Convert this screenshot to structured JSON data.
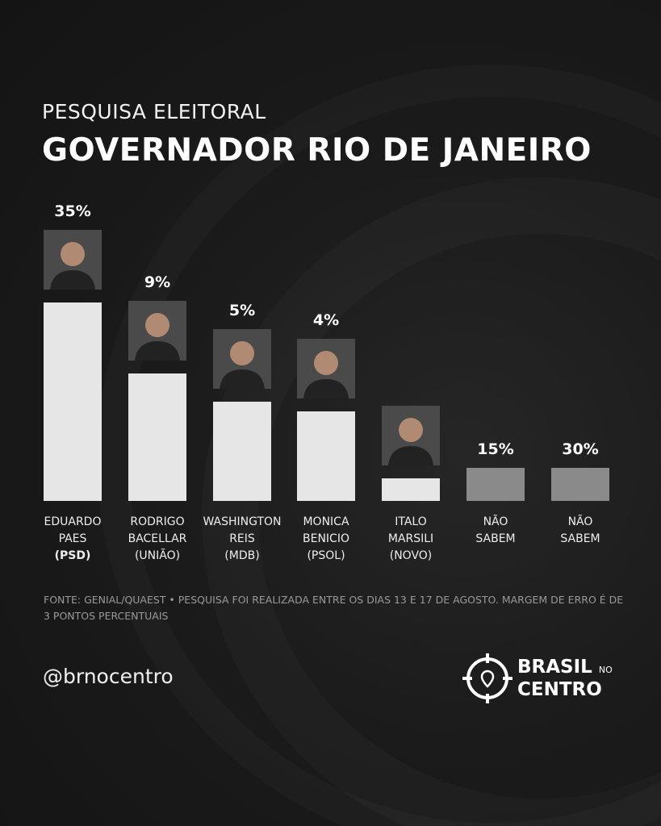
{
  "header": {
    "kicker": "PESQUISA ELEITORAL",
    "title": "GOVERNADOR RIO DE JANEIRO"
  },
  "chart_data": {
    "type": "bar",
    "title": "GOVERNADOR RIO DE JANEIRO",
    "categories": [
      "EDUARDO PAES (PSD)",
      "RODRIGO BACELLAR (UNIÃO)",
      "WASHINGTON REIS (MDB)",
      "MONICA BENICIO (PSOL)",
      "ITALO MARSILI (NOVO)",
      "NÃO SABEM",
      "NÃO SABEM"
    ],
    "items": [
      {
        "line1": "EDUARDO",
        "line2": "PAES",
        "party": "(PSD)",
        "value": 35,
        "label": "35%",
        "photo": true,
        "color": "#e6e6e6"
      },
      {
        "line1": "RODRIGO",
        "line2": "BACELLAR",
        "party": "(UNIÃO)",
        "value": 9,
        "label": "9%",
        "photo": true,
        "color": "#e6e6e6"
      },
      {
        "line1": "WASHINGTON",
        "line2": "REIS",
        "party": "(MDB)",
        "value": 5,
        "label": "5%",
        "photo": true,
        "color": "#e6e6e6"
      },
      {
        "line1": "MONICA",
        "line2": "BENICIO",
        "party": "(PSOL)",
        "value": 4,
        "label": "4%",
        "photo": true,
        "color": "#e6e6e6"
      },
      {
        "line1": "ITALO",
        "line2": "MARSILI",
        "party": "(NOVO)",
        "value": null,
        "label": "",
        "photo": true,
        "color": "#e6e6e6"
      },
      {
        "line1": "NÃO",
        "line2": "SABEM",
        "party": "",
        "value": 15,
        "label": "15%",
        "photo": false,
        "color": "#8a8a8a"
      },
      {
        "line1": "NÃO",
        "line2": "SABEM",
        "party": "",
        "value": 30,
        "label": "30%",
        "photo": false,
        "color": "#8a8a8a"
      }
    ],
    "values": [
      35,
      9,
      5,
      4,
      null,
      15,
      30
    ],
    "grid": false,
    "legend": "none"
  },
  "footer": {
    "source": "FONTE: GENIAL/QUAEST • PESQUISA FOI REALIZADA ENTRE OS DIAS 13 E 17 DE AGOSTO. MARGEM DE ERRO É DE 3 PONTOS PERCENTUAIS",
    "handle": "@brnocentro",
    "logo_line1": "BRASIL",
    "logo_small": "NO",
    "logo_line2": "CENTRO"
  }
}
